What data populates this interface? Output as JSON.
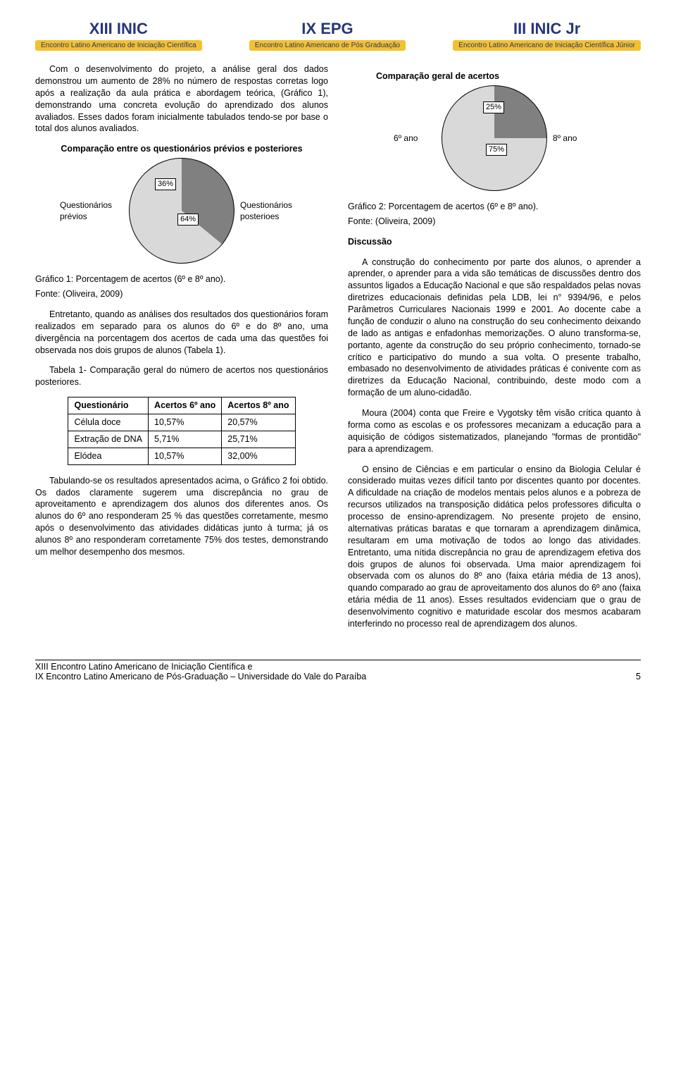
{
  "logos": [
    {
      "title": "XIII INIC",
      "sub": "Encontro Latino Americano\nde Iniciação Científica",
      "title_color": "#27357a",
      "title_size": 22
    },
    {
      "title": "IX EPG",
      "sub": "Encontro Latino Americano\nde Pós Graduação",
      "title_color": "#27357a",
      "title_size": 22
    },
    {
      "title": "III INIC Jr",
      "sub": "Encontro Latino Americano\nde Iniciação Científica Júnior",
      "title_color": "#27357a",
      "title_size": 22
    }
  ],
  "left_col": {
    "p1": "Com o desenvolvimento do projeto, a análise geral dos dados demonstrou um aumento de 28% no número de respostas corretas logo após a realização da aula prática e abordagem teórica, (Gráfico 1), demonstrando uma concreta evolução do aprendizado dos alunos avaliados. Esses dados foram inicialmente tabulados tendo-se por base o total dos alunos avaliados.",
    "chart1": {
      "type": "pie",
      "title": "Comparação entre os questionários prévios e posteriores",
      "labels": {
        "left": "Questionários prévios",
        "right": "Questionários posterioes"
      },
      "slices": [
        {
          "label": "36%",
          "value": 36,
          "color": "#808080"
        },
        {
          "label": "64%",
          "value": 64,
          "color": "#d9d9d9"
        }
      ],
      "size": 150,
      "border_color": "#000000",
      "background_color": "#ffffff",
      "title_fontsize": 12.5
    },
    "caption1": "Gráfico 1: Porcentagem de acertos (6º e 8º ano).",
    "fonte1": "Fonte: (Oliveira, 2009)",
    "p2": "Entretanto, quando as análises dos resultados dos questionários foram realizados em separado para os alunos do 6º e do 8º ano, uma divergência na porcentagem dos acertos de cada uma das questões foi observada nos dois grupos de alunos (Tabela 1).",
    "table_caption": "Tabela 1- Comparação geral do número de acertos nos questionários posteriores.",
    "table": {
      "columns": [
        "Questionário",
        "Acertos 6º ano",
        "Acertos 8º ano"
      ],
      "rows": [
        [
          "Célula doce",
          "10,57%",
          "20,57%"
        ],
        [
          "Extração de DNA",
          "5,71%",
          "25,71%"
        ],
        [
          "Elódea",
          "10,57%",
          "32,00%"
        ]
      ],
      "border_color": "#000000",
      "fontsize": 12.5
    },
    "p3": "Tabulando-se os resultados apresentados acima, o Gráfico 2 foi obtido. Os dados claramente sugerem uma discrepância no grau de aproveitamento e aprendizagem dos alunos dos diferentes anos. Os alunos do 6º ano responderam 25 % das questões corretamente, mesmo após o desenvolvimento das atividades didáticas junto à turma; já os alunos 8º ano responderam corretamente 75% dos testes, demonstrando um melhor desempenho dos mesmos."
  },
  "right_col": {
    "chart2": {
      "type": "pie",
      "title": "Comparação geral de acertos",
      "labels": {
        "left": "6º ano",
        "right": "8º ano"
      },
      "slices": [
        {
          "label": "25%",
          "value": 25,
          "color": "#808080"
        },
        {
          "label": "75%",
          "value": 75,
          "color": "#d9d9d9"
        }
      ],
      "size": 150,
      "border_color": "#000000",
      "background_color": "#ffffff",
      "title_fontsize": 12.5
    },
    "caption2": "Gráfico 2: Porcentagem de acertos (6º e 8º ano).",
    "fonte2": "Fonte: (Oliveira, 2009)",
    "discussao_head": "Discussão",
    "p1": "A construção do conhecimento por parte dos alunos, o aprender a aprender, o aprender para a vida são temáticas de discussões dentro dos assuntos ligados a Educação Nacional e que são respaldados pelas novas diretrizes educacionais definidas pela LDB, lei n° 9394/96, e pelos Parâmetros Curriculares Nacionais 1999 e 2001. Ao docente cabe a função de conduzir o aluno na construção do seu conhecimento deixando de lado as antigas e enfadonhas memorizações. O aluno transforma-se, portanto, agente da construção do seu próprio conhecimento, tornado-se crítico e participativo do mundo a sua volta. O presente trabalho, embasado no desenvolvimento de atividades práticas é conivente com as diretrizes da Educação Nacional, contribuindo, deste modo com a formação de um aluno-cidadão.",
    "p2": "Moura (2004) conta que Freire e Vygotsky têm visão crítica quanto à forma como as escolas e os professores mecanizam a educação para a aquisição de códigos sistematizados, planejando \"formas de prontidão\" para a aprendizagem.",
    "p3": "O ensino de Ciências e em particular o ensino da Biologia Celular é considerado muitas vezes difícil tanto por discentes quanto por docentes.  A dificuldade na criação de modelos mentais pelos alunos e a pobreza de recursos utilizados na transposição didática pelos professores dificulta o processo de ensino-aprendizagem. No presente projeto de ensino, alternativas práticas baratas e que tornaram a aprendizagem dinâmica, resultaram em uma motivação de todos ao longo das atividades. Entretanto, uma nítida discrepância no grau de aprendizagem efetiva dos dois grupos de alunos foi observada. Uma maior aprendizagem foi observada com os alunos do 8º ano (faixa etária média de 13 anos), quando comparado ao grau de aproveitamento dos alunos do 6º ano (faixa etária média de 11 anos). Esses resultados evidenciam que o grau de desenvolvimento cognitivo e maturidade escolar dos mesmos acabaram interferindo no processo real de aprendizagem dos alunos."
  },
  "footer": {
    "line1": "XIII Encontro Latino Americano de Iniciação Científica e",
    "line2": "IX Encontro Latino Americano de Pós-Graduação – Universidade do Vale do Paraíba",
    "page": "5"
  }
}
